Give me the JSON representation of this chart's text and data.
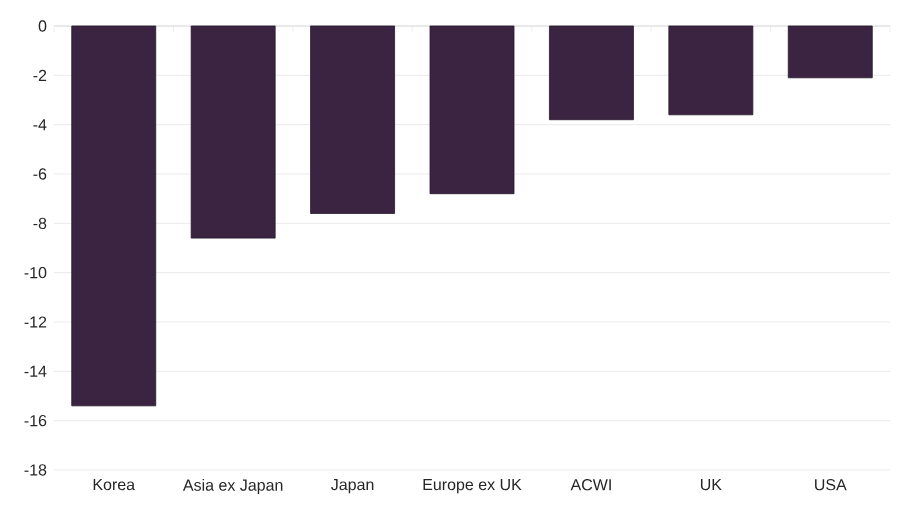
{
  "chart_data": {
    "type": "bar",
    "categories": [
      "Korea",
      "Asia ex Japan",
      "Japan",
      "Europe ex UK",
      "ACWI",
      "UK",
      "USA"
    ],
    "values": [
      -15.4,
      -8.6,
      -7.6,
      -6.8,
      -3.8,
      -3.6,
      -2.1
    ],
    "color": "#3b2442",
    "ylim": [
      -18,
      0
    ],
    "yticks": [
      -18,
      -16,
      -14,
      -12,
      -10,
      -8,
      -6,
      -4,
      -2,
      0
    ],
    "grid": "y"
  }
}
